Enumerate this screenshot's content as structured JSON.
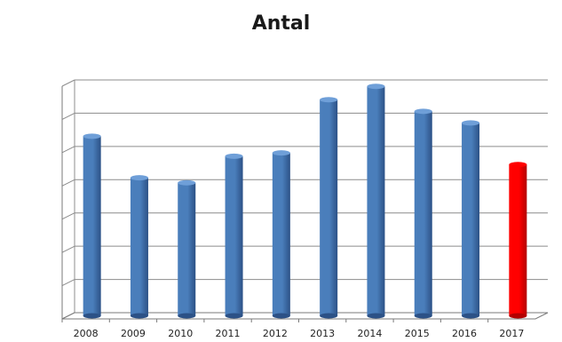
{
  "chart_data": {
    "type": "bar",
    "title": "Antal",
    "xlabel": "",
    "ylabel": "",
    "categories": [
      "2008",
      "2009",
      "2010",
      "2011",
      "2012",
      "2013",
      "2014",
      "2015",
      "2016",
      "2017"
    ],
    "values": [
      108,
      83,
      80,
      96,
      98,
      130,
      138,
      123,
      116,
      91
    ],
    "ylim": [
      0,
      140
    ],
    "yticks": [
      "0",
      "20",
      "40",
      "60",
      "80",
      "100",
      "120",
      "140"
    ],
    "grid": true,
    "legend": "none",
    "colors": {
      "bar": "#4a7ebb",
      "bar_dark": "#2c5186",
      "bar_highlight": "#ff0000",
      "bar_highlight_dark": "#b30000",
      "grid": "#8c8c8c"
    },
    "highlight_index": 9
  }
}
